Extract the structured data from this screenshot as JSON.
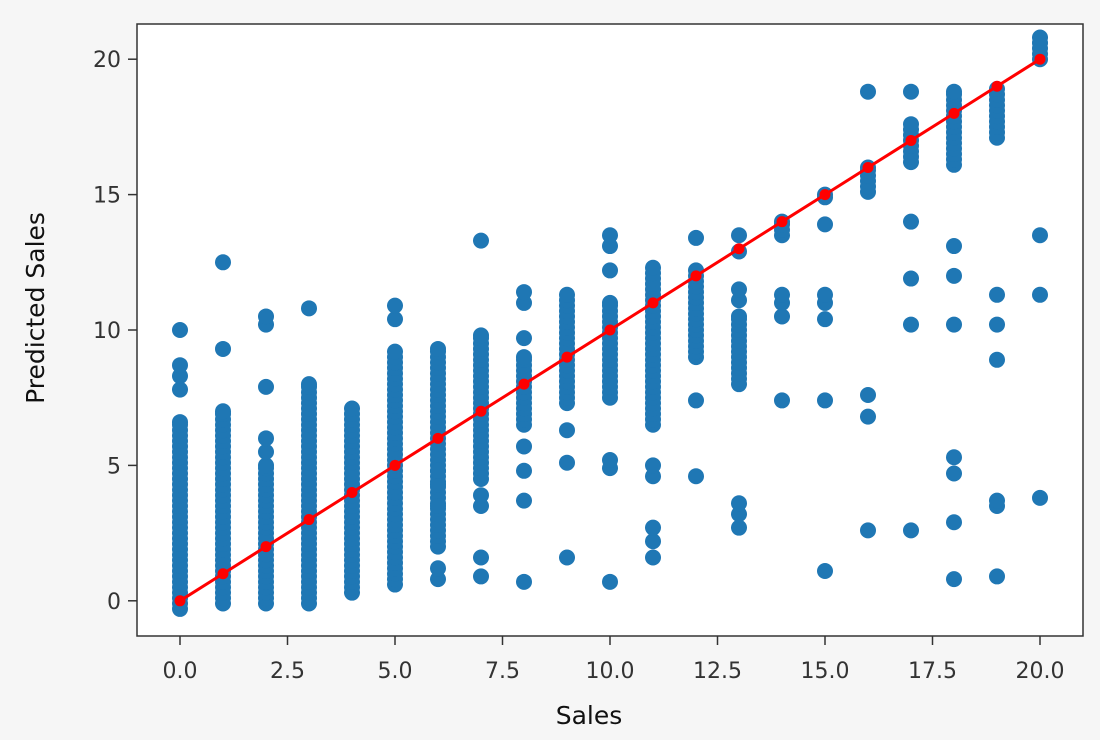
{
  "chart_data": {
    "type": "scatter",
    "title": "",
    "xlabel": "Sales",
    "ylabel": "Predicted Sales",
    "xlim": [
      -1,
      21
    ],
    "ylim": [
      -1.3,
      21.3
    ],
    "x_ticks": [
      0,
      2.5,
      5,
      7.5,
      10,
      12.5,
      15,
      17.5,
      20
    ],
    "x_tick_labels": [
      "0.0",
      "2.5",
      "5.0",
      "7.5",
      "10.0",
      "12.5",
      "15.0",
      "17.5",
      "20.0"
    ],
    "y_ticks": [
      0,
      5,
      10,
      15,
      20
    ],
    "y_tick_labels": [
      "0",
      "5",
      "10",
      "15",
      "20"
    ],
    "grid": false,
    "series": [
      {
        "kind": "scatter",
        "color": "#1f77b4",
        "columns": [
          {
            "x": 0,
            "min": -0.3,
            "max": 6.6,
            "extra": [
              7.8,
              8.3,
              8.7,
              10.0
            ]
          },
          {
            "x": 1,
            "min": -0.1,
            "max": 7.0,
            "extra": [
              9.3,
              12.5
            ]
          },
          {
            "x": 2,
            "min": -0.1,
            "max": 5.0,
            "extra": [
              5.5,
              6.0,
              7.9,
              10.2,
              10.5
            ]
          },
          {
            "x": 3,
            "min": -0.1,
            "max": 8.0,
            "extra": [
              10.8
            ]
          },
          {
            "x": 4,
            "min": 0.3,
            "max": 7.1,
            "extra": []
          },
          {
            "x": 5,
            "min": 0.6,
            "max": 9.2,
            "extra": [
              10.4,
              10.9
            ]
          },
          {
            "x": 6,
            "min": 2.0,
            "max": 9.3,
            "extra": [
              0.8,
              1.2,
              3.5,
              4.3,
              4.8
            ]
          },
          {
            "x": 7,
            "min": 4.5,
            "max": 9.8,
            "extra": [
              0.9,
              1.6,
              3.5,
              3.9,
              13.3
            ]
          },
          {
            "x": 8,
            "min": 6.5,
            "max": 9.0,
            "extra": [
              0.7,
              3.7,
              4.8,
              5.7,
              9.7,
              11.0,
              11.4
            ]
          },
          {
            "x": 9,
            "min": 7.3,
            "max": 11.3,
            "extra": [
              1.6,
              5.1,
              6.3
            ]
          },
          {
            "x": 10,
            "min": 7.5,
            "max": 11.0,
            "extra": [
              0.7,
              4.9,
              5.2,
              12.2,
              13.1,
              13.5
            ]
          },
          {
            "x": 11,
            "min": 6.5,
            "max": 12.3,
            "extra": [
              1.6,
              2.2,
              2.7,
              4.6,
              5.0
            ]
          },
          {
            "x": 12,
            "min": 9.0,
            "max": 12.2,
            "extra": [
              4.6,
              7.4,
              13.4
            ]
          },
          {
            "x": 13,
            "min": 8.0,
            "max": 10.5,
            "extra": [
              2.7,
              3.2,
              3.6,
              11.1,
              11.5,
              12.9,
              13.5
            ]
          },
          {
            "x": 14,
            "min": 13.5,
            "max": 14.0,
            "extra": [
              7.4,
              10.5,
              11.0,
              11.3
            ]
          },
          {
            "x": 15,
            "min": 14.9,
            "max": 15.0,
            "extra": [
              1.1,
              7.4,
              10.4,
              11.0,
              11.3,
              13.9
            ]
          },
          {
            "x": 16,
            "min": 15.1,
            "max": 16.0,
            "extra": [
              2.6,
              6.8,
              7.6,
              18.8
            ]
          },
          {
            "x": 17,
            "min": 16.2,
            "max": 17.6,
            "extra": [
              2.6,
              10.2,
              11.9,
              14.0,
              18.8
            ]
          },
          {
            "x": 18,
            "min": 16.1,
            "max": 18.8,
            "extra": [
              0.8,
              2.9,
              4.7,
              5.3,
              10.2,
              12.0,
              13.1
            ]
          },
          {
            "x": 19,
            "min": 17.1,
            "max": 18.9,
            "extra": [
              0.9,
              3.5,
              3.7,
              8.9,
              10.2,
              11.3
            ]
          },
          {
            "x": 20,
            "min": 20.0,
            "max": 20.8,
            "extra": [
              3.8,
              11.3,
              13.5
            ]
          }
        ]
      },
      {
        "kind": "line",
        "color": "#ff0000",
        "x": [
          0,
          1,
          2,
          3,
          4,
          5,
          6,
          7,
          8,
          9,
          10,
          11,
          12,
          13,
          14,
          15,
          16,
          17,
          18,
          19,
          20
        ],
        "y": [
          0,
          1,
          2,
          3,
          4,
          5,
          6,
          7,
          8,
          9,
          10,
          11,
          12,
          13,
          14,
          15,
          16,
          17,
          18,
          19,
          20
        ]
      }
    ]
  }
}
